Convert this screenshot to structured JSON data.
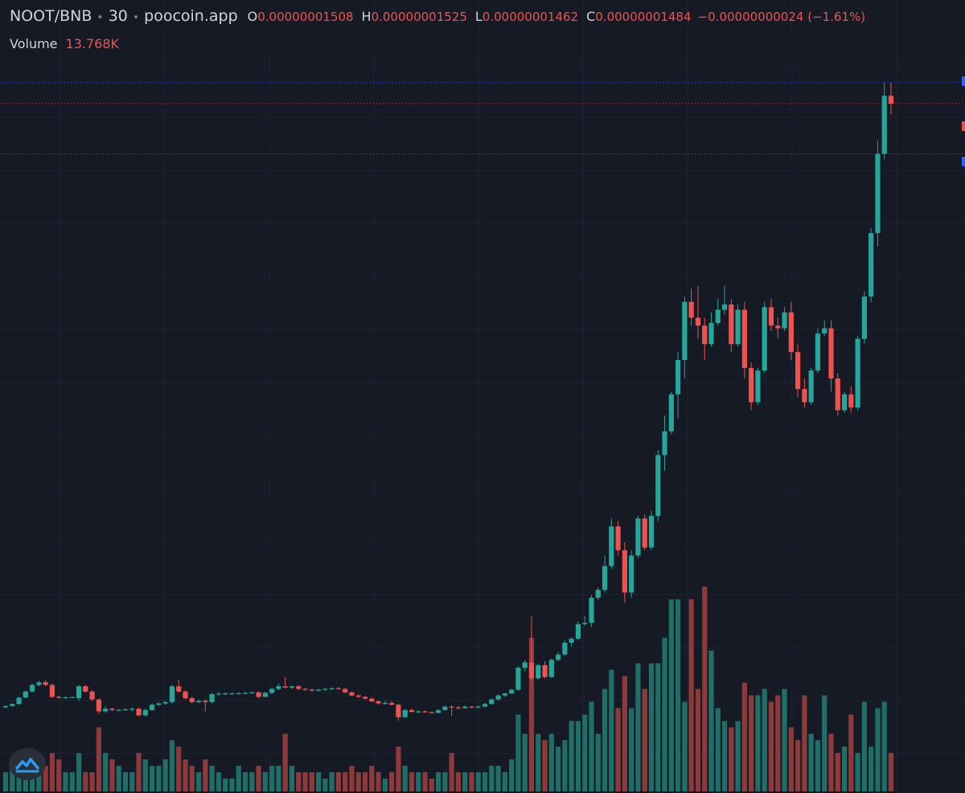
{
  "legend": {
    "symbol": "NOOT/BNB",
    "interval": "30",
    "source": "poocoin.app",
    "open_key": "O",
    "open": "0.00000001508",
    "high_key": "H",
    "high": "0.00000001525",
    "low_key": "L",
    "low": "0.00000001462",
    "close_key": "C",
    "close": "0.00000001484",
    "change": "−0.00000000024 (−1.61%)",
    "volume_label": "Volume",
    "volume_value": "13.768K"
  },
  "colors": {
    "background": "#161a25",
    "grid": "#1f2433",
    "up": "#26a69a",
    "down": "#ef5350",
    "volume_up": "#1f6e68",
    "volume_down": "#8e3a3b",
    "text": "#d1d4dc",
    "marker_blue": "#2962ff"
  },
  "icons": {
    "logo": "chart-logo-icon"
  },
  "chart_data": {
    "type": "candlestick",
    "y_unit": "relative price (unlabeled axis)",
    "candles": [
      [
        1.05,
        1.12,
        1.02,
        1.1,
        3
      ],
      [
        1.1,
        1.2,
        1.08,
        1.18,
        4
      ],
      [
        1.18,
        1.45,
        1.15,
        1.42,
        3
      ],
      [
        1.42,
        1.7,
        1.4,
        1.65,
        5
      ],
      [
        1.65,
        1.95,
        1.62,
        1.9,
        5
      ],
      [
        1.9,
        2.05,
        1.85,
        2.0,
        4
      ],
      [
        2.0,
        2.08,
        1.85,
        1.9,
        4
      ],
      [
        1.9,
        1.95,
        1.4,
        1.45,
        6
      ],
      [
        1.45,
        1.5,
        1.38,
        1.42,
        5
      ],
      [
        1.42,
        1.48,
        1.38,
        1.43,
        3
      ],
      [
        1.43,
        1.46,
        1.4,
        1.44,
        3
      ],
      [
        1.4,
        1.9,
        1.3,
        1.85,
        6
      ],
      [
        1.85,
        1.9,
        1.6,
        1.65,
        3
      ],
      [
        1.65,
        1.7,
        1.3,
        1.35,
        3
      ],
      [
        1.35,
        1.4,
        0.8,
        0.9,
        10
      ],
      [
        0.9,
        1.1,
        0.85,
        1.0,
        6
      ],
      [
        1.0,
        1.05,
        0.92,
        0.95,
        5
      ],
      [
        0.95,
        1.0,
        0.9,
        0.96,
        4
      ],
      [
        0.96,
        1.02,
        0.92,
        0.98,
        3
      ],
      [
        0.98,
        1.05,
        0.9,
        1.0,
        3
      ],
      [
        1.0,
        1.05,
        0.7,
        0.75,
        6
      ],
      [
        0.75,
        1.0,
        0.7,
        0.95,
        5
      ],
      [
        0.95,
        1.2,
        0.92,
        1.15,
        4
      ],
      [
        1.15,
        1.25,
        1.1,
        1.2,
        4
      ],
      [
        1.2,
        1.3,
        1.15,
        1.25,
        5
      ],
      [
        1.25,
        1.9,
        1.2,
        1.85,
        8
      ],
      [
        1.85,
        2.1,
        1.6,
        1.65,
        7
      ],
      [
        1.65,
        1.7,
        1.35,
        1.4,
        5
      ],
      [
        1.4,
        1.45,
        1.2,
        1.25,
        4
      ],
      [
        1.25,
        1.35,
        1.2,
        1.3,
        3
      ],
      [
        1.3,
        1.35,
        0.9,
        1.25,
        5
      ],
      [
        1.25,
        1.6,
        1.2,
        1.55,
        4
      ],
      [
        1.55,
        1.62,
        1.5,
        1.57,
        3
      ],
      [
        1.57,
        1.62,
        1.52,
        1.58,
        2
      ],
      [
        1.58,
        1.62,
        1.54,
        1.58,
        2
      ],
      [
        1.58,
        1.63,
        1.53,
        1.59,
        4
      ],
      [
        1.59,
        1.64,
        1.55,
        1.6,
        3
      ],
      [
        1.6,
        1.65,
        1.58,
        1.62,
        3
      ],
      [
        1.62,
        1.66,
        1.4,
        1.45,
        4
      ],
      [
        1.45,
        1.65,
        1.42,
        1.6,
        3
      ],
      [
        1.6,
        1.8,
        1.55,
        1.75,
        4
      ],
      [
        1.75,
        1.95,
        1.7,
        1.85,
        4
      ],
      [
        1.85,
        2.2,
        1.78,
        1.8,
        9
      ],
      [
        1.8,
        1.88,
        1.75,
        1.85,
        4
      ],
      [
        1.85,
        1.9,
        1.7,
        1.75,
        3
      ],
      [
        1.75,
        1.8,
        1.68,
        1.72,
        3
      ],
      [
        1.72,
        1.76,
        1.65,
        1.68,
        3
      ],
      [
        1.68,
        1.75,
        1.65,
        1.72,
        3
      ],
      [
        1.72,
        1.78,
        1.68,
        1.75,
        2
      ],
      [
        1.75,
        1.8,
        1.7,
        1.78,
        3
      ],
      [
        1.78,
        1.82,
        1.72,
        1.75,
        3
      ],
      [
        1.75,
        1.78,
        1.58,
        1.62,
        3
      ],
      [
        1.62,
        1.66,
        1.46,
        1.5,
        4
      ],
      [
        1.5,
        1.55,
        1.4,
        1.45,
        3
      ],
      [
        1.45,
        1.48,
        1.35,
        1.38,
        3
      ],
      [
        1.38,
        1.42,
        1.25,
        1.28,
        4
      ],
      [
        1.28,
        1.32,
        1.15,
        1.2,
        3
      ],
      [
        1.2,
        1.3,
        1.15,
        1.22,
        2
      ],
      [
        1.22,
        1.28,
        1.12,
        1.15,
        3
      ],
      [
        1.15,
        1.2,
        0.55,
        0.68,
        7
      ],
      [
        0.68,
        1.0,
        0.66,
        0.95,
        4
      ],
      [
        0.95,
        1.0,
        0.85,
        0.88,
        3
      ],
      [
        0.88,
        0.95,
        0.84,
        0.9,
        3
      ],
      [
        0.9,
        0.94,
        0.85,
        0.87,
        3
      ],
      [
        0.87,
        0.9,
        0.82,
        0.84,
        2
      ],
      [
        0.84,
        0.98,
        0.82,
        0.95,
        3
      ],
      [
        0.95,
        1.12,
        0.92,
        1.08,
        3
      ],
      [
        1.08,
        1.12,
        0.72,
        1.05,
        6
      ],
      [
        1.05,
        1.1,
        0.98,
        1.02,
        3
      ],
      [
        1.02,
        1.12,
        1.0,
        1.08,
        3
      ],
      [
        1.08,
        1.1,
        1.02,
        1.05,
        3
      ],
      [
        1.05,
        1.12,
        1.02,
        1.08,
        3
      ],
      [
        1.08,
        1.22,
        1.05,
        1.18,
        3
      ],
      [
        1.18,
        1.4,
        1.15,
        1.35,
        4
      ],
      [
        1.35,
        1.55,
        1.3,
        1.5,
        4
      ],
      [
        1.5,
        1.6,
        1.45,
        1.58,
        3
      ],
      [
        1.58,
        1.75,
        1.55,
        1.72,
        5
      ],
      [
        1.72,
        2.6,
        1.68,
        2.55,
        12
      ],
      [
        2.55,
        2.85,
        2.4,
        2.75,
        9
      ],
      [
        2.75,
        4.5,
        2.05,
        2.15,
        24
      ],
      [
        2.15,
        2.7,
        2.1,
        2.65,
        9
      ],
      [
        2.65,
        2.8,
        2.15,
        2.2,
        8
      ],
      [
        2.2,
        2.9,
        2.18,
        2.85,
        9
      ],
      [
        2.85,
        3.15,
        2.8,
        3.05,
        7
      ],
      [
        3.05,
        3.6,
        3.0,
        3.5,
        8
      ],
      [
        3.5,
        3.7,
        3.35,
        3.65,
        11
      ],
      [
        3.65,
        4.3,
        3.6,
        4.2,
        11
      ],
      [
        4.2,
        4.5,
        4.15,
        4.25,
        12
      ],
      [
        4.25,
        5.3,
        4.1,
        5.2,
        14
      ],
      [
        5.2,
        5.6,
        5.1,
        5.5,
        9
      ],
      [
        5.5,
        6.8,
        5.4,
        6.4,
        16
      ],
      [
        6.4,
        8.2,
        6.3,
        7.9,
        19
      ],
      [
        7.9,
        8.1,
        6.8,
        7.0,
        13
      ],
      [
        7.0,
        7.3,
        5.0,
        5.4,
        18
      ],
      [
        5.4,
        7.0,
        5.2,
        6.8,
        13
      ],
      [
        6.8,
        8.3,
        6.7,
        8.2,
        20
      ],
      [
        8.2,
        8.35,
        7.0,
        7.1,
        16
      ],
      [
        7.1,
        8.5,
        7.0,
        8.3,
        20
      ],
      [
        8.3,
        10.8,
        8.1,
        10.6,
        20
      ],
      [
        10.6,
        12.1,
        10.0,
        11.5,
        24
      ],
      [
        11.5,
        13.0,
        11.4,
        12.9,
        30
      ],
      [
        12.9,
        14.5,
        12.0,
        14.2,
        30
      ],
      [
        14.2,
        16.6,
        13.5,
        16.4,
        14
      ],
      [
        16.4,
        16.9,
        15.5,
        15.8,
        30
      ],
      [
        15.8,
        17.0,
        15.0,
        15.5,
        16
      ],
      [
        15.5,
        15.8,
        14.2,
        14.8,
        32
      ],
      [
        14.8,
        16.0,
        14.7,
        15.6,
        22
      ],
      [
        15.6,
        16.5,
        15.5,
        16.1,
        13
      ],
      [
        16.1,
        17.0,
        15.9,
        16.3,
        11
      ],
      [
        16.3,
        16.5,
        14.5,
        14.8,
        10
      ],
      [
        14.8,
        16.3,
        14.7,
        16.1,
        11
      ],
      [
        16.1,
        16.4,
        13.5,
        13.9,
        17
      ],
      [
        13.9,
        14.1,
        12.3,
        12.6,
        15
      ],
      [
        12.6,
        13.9,
        12.5,
        13.8,
        15
      ],
      [
        13.8,
        16.4,
        13.7,
        16.2,
        16
      ],
      [
        16.2,
        16.5,
        15.3,
        15.5,
        14
      ],
      [
        15.5,
        15.8,
        15.0,
        15.4,
        15
      ],
      [
        15.4,
        16.2,
        15.3,
        16.0,
        16
      ],
      [
        16.0,
        16.4,
        14.2,
        14.5,
        10
      ],
      [
        14.5,
        14.8,
        12.8,
        13.1,
        8
      ],
      [
        13.1,
        13.5,
        12.4,
        12.6,
        15
      ],
      [
        12.6,
        13.9,
        12.5,
        13.8,
        9
      ],
      [
        13.8,
        15.4,
        13.7,
        15.2,
        8
      ],
      [
        15.2,
        15.7,
        15.1,
        15.4,
        15
      ],
      [
        15.4,
        15.7,
        13.0,
        13.5,
        9
      ],
      [
        13.5,
        13.7,
        12.1,
        12.3,
        6
      ],
      [
        12.3,
        13.0,
        12.2,
        12.9,
        7
      ],
      [
        12.9,
        13.2,
        12.2,
        12.4,
        12
      ],
      [
        12.4,
        15.1,
        12.3,
        15.0,
        6
      ],
      [
        15.0,
        16.8,
        14.8,
        16.6,
        14
      ],
      [
        16.6,
        19.2,
        16.4,
        19.0,
        7
      ],
      [
        19.0,
        22.5,
        18.5,
        22.0,
        13
      ],
      [
        22.0,
        24.7,
        21.8,
        24.2,
        14
      ],
      [
        24.2,
        24.7,
        23.5,
        23.9,
        6
      ]
    ],
    "price_lines": [
      {
        "price": 24.7,
        "style": "dotted",
        "color": "#2962ff",
        "marker": true
      },
      {
        "price": 23.9,
        "style": "dotted",
        "color": "#ef5350",
        "marker": true
      },
      {
        "price": 22.0,
        "style": "dotted",
        "color": "#2962ff",
        "marker": true
      }
    ],
    "y_range": [
      0,
      26
    ]
  }
}
